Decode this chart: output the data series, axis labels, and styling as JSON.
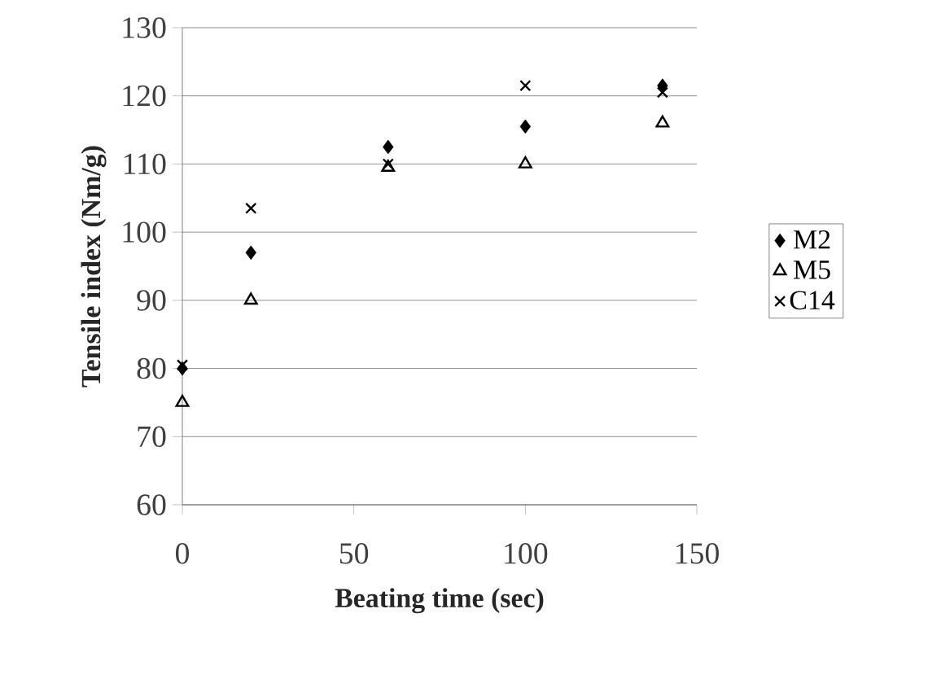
{
  "chart_data": {
    "type": "scatter",
    "xlabel": "Beating time (sec)",
    "ylabel": "Tensile index (Nm/g)",
    "xlim": [
      0,
      150
    ],
    "xticks": [
      0,
      50,
      100,
      150
    ],
    "ylim": [
      60,
      130
    ],
    "yticks": [
      60,
      70,
      80,
      90,
      100,
      110,
      120,
      130
    ],
    "grid": "y",
    "legend": "right",
    "series": [
      {
        "name": "M2",
        "color": "#000000",
        "marker": "diamond",
        "x": [
          0,
          20,
          60,
          100,
          140
        ],
        "values": [
          80,
          97,
          112.5,
          115.5,
          121.5
        ]
      },
      {
        "name": "M5",
        "color": "#000000",
        "marker": "triangle",
        "x": [
          0,
          20,
          60,
          100,
          140
        ],
        "values": [
          75,
          90,
          109.5,
          110,
          116
        ]
      },
      {
        "name": "C14",
        "color": "#000000",
        "marker": "cross",
        "x": [
          0,
          20,
          60,
          100,
          140
        ],
        "values": [
          80.5,
          103.5,
          110,
          121.5,
          120.5
        ]
      }
    ]
  }
}
